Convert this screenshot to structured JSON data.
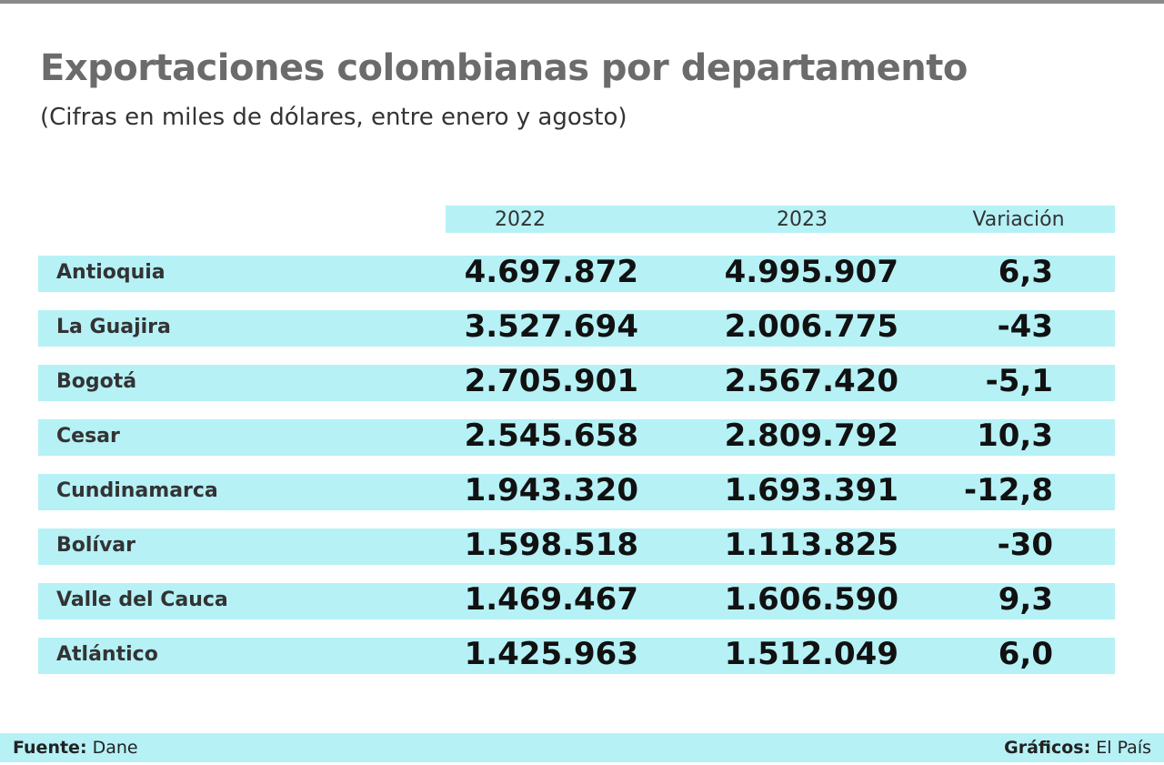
{
  "header": {
    "title": "Exportaciones colombianas por departamento",
    "subtitle": "(Cifras en miles de dólares, entre enero y agosto)"
  },
  "table": {
    "columns": [
      "2022",
      "2023",
      "Variación"
    ],
    "rows": [
      [
        "Antioquia",
        "4.697.872",
        "4.995.907",
        "6,3"
      ],
      [
        "La Guajira",
        "3.527.694",
        "2.006.775",
        "-43"
      ],
      [
        "Bogotá",
        "2.705.901",
        "2.567.420",
        "-5,1"
      ],
      [
        "Cesar",
        "2.545.658",
        "2.809.792",
        "10,3"
      ],
      [
        "Cundinamarca",
        "1.943.320",
        "1.693.391",
        "-12,8"
      ],
      [
        "Bolívar",
        "1.598.518",
        "1.113.825",
        "-30"
      ],
      [
        "Valle del Cauca",
        "1.469.467",
        "1.606.590",
        "9,3"
      ],
      [
        "Atlántico",
        "1.425.963",
        "1.512.049",
        "6,0"
      ]
    ]
  },
  "footer": {
    "source_label": "Fuente:",
    "source": "Dane",
    "credits_label": "Gráficos:",
    "credits": "El País"
  }
}
